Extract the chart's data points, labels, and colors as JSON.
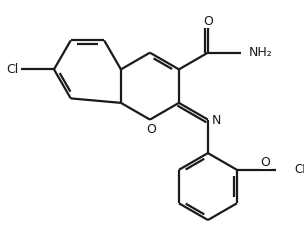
{
  "background": "#ffffff",
  "bond_color": "#1a1a1a",
  "lw": 1.6,
  "figsize": [
    3.04,
    2.44
  ],
  "dpi": 100,
  "xlim": [
    -1.0,
    10.5
  ],
  "ylim": [
    -5.5,
    4.5
  ]
}
